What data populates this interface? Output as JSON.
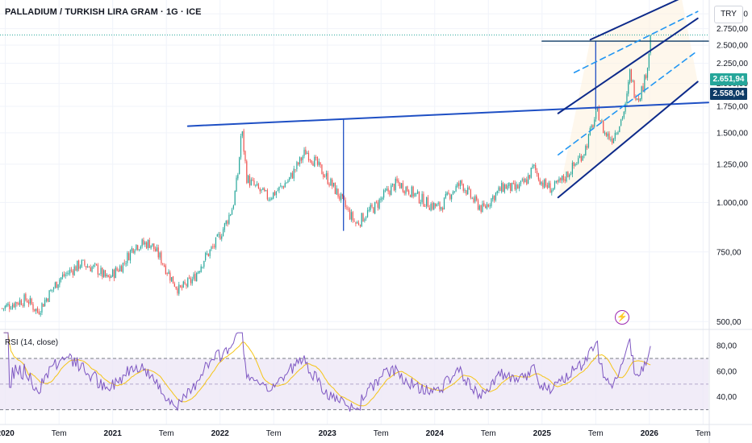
{
  "header": {
    "title": "PALLADIUM / TURKISH LIRA GRAM · 1G · ICE",
    "currency": "TRY"
  },
  "badges": {
    "last_price": "2.651,94",
    "level_price": "2.558,04",
    "last_color": "#26a69a",
    "level_color": "#0d3b66"
  },
  "rsi": {
    "label": "RSI (14, close)",
    "line_color": "#7e57c2",
    "ma_color": "#f5c518",
    "upper": 70,
    "middle": 50,
    "lower": 30
  },
  "icons": {
    "event": "flash-icon"
  },
  "colors": {
    "up": "#26a69a",
    "down": "#ef5350",
    "trendline": "#1e4fc4",
    "channel": "#0d2a8a",
    "channel_mid": "#2196f3",
    "rsi_band": "#ede7f6"
  },
  "chart_data": [
    {
      "type": "candlestick",
      "title": "PALLADIUM / TURKISH LIRA GRAM · 1G · ICE",
      "x_ticks": [
        "2020",
        "Tem",
        "2021",
        "Tem",
        "2022",
        "Tem",
        "2023",
        "Tem",
        "2024",
        "Tem",
        "2025",
        "Tem",
        "2026",
        "Tem"
      ],
      "y_ticks": [
        "500,00",
        "750,00",
        "1.000,00",
        "1.250,00",
        "1.500,00",
        "1.750,00",
        "2.000,00",
        "2.250,00",
        "2.500,00",
        "2.750,00",
        "3.000,00"
      ],
      "ylim": [
        480,
        3250
      ],
      "xlim": [
        2019.95,
        2026.55
      ],
      "last_price": 2651.94,
      "marked_level": 2558.04,
      "price_path": [
        [
          2019.97,
          540
        ],
        [
          2020.1,
          560
        ],
        [
          2020.2,
          570
        ],
        [
          2020.3,
          530
        ],
        [
          2020.5,
          640
        ],
        [
          2020.7,
          700
        ],
        [
          2020.85,
          680
        ],
        [
          2020.95,
          640
        ],
        [
          2021.1,
          700
        ],
        [
          2021.2,
          780
        ],
        [
          2021.35,
          790
        ],
        [
          2021.45,
          720
        ],
        [
          2021.55,
          640
        ],
        [
          2021.62,
          600
        ],
        [
          2021.75,
          640
        ],
        [
          2021.85,
          720
        ],
        [
          2021.95,
          780
        ],
        [
          2022.05,
          880
        ],
        [
          2022.12,
          980
        ],
        [
          2022.17,
          1200
        ],
        [
          2022.2,
          1550
        ],
        [
          2022.25,
          1150
        ],
        [
          2022.35,
          1080
        ],
        [
          2022.45,
          1030
        ],
        [
          2022.55,
          1080
        ],
        [
          2022.65,
          1150
        ],
        [
          2022.75,
          1280
        ],
        [
          2022.8,
          1350
        ],
        [
          2022.9,
          1250
        ],
        [
          2023.0,
          1150
        ],
        [
          2023.1,
          1050
        ],
        [
          2023.2,
          940
        ],
        [
          2023.27,
          880
        ],
        [
          2023.35,
          930
        ],
        [
          2023.45,
          980
        ],
        [
          2023.55,
          1060
        ],
        [
          2023.65,
          1120
        ],
        [
          2023.75,
          1080
        ],
        [
          2023.85,
          1030
        ],
        [
          2023.95,
          990
        ],
        [
          2024.05,
          970
        ],
        [
          2024.15,
          1060
        ],
        [
          2024.25,
          1120
        ],
        [
          2024.35,
          1020
        ],
        [
          2024.45,
          960
        ],
        [
          2024.55,
          1040
        ],
        [
          2024.65,
          1100
        ],
        [
          2024.75,
          1080
        ],
        [
          2024.85,
          1130
        ],
        [
          2024.92,
          1230
        ],
        [
          2025.0,
          1120
        ],
        [
          2025.1,
          1080
        ],
        [
          2025.2,
          1150
        ],
        [
          2025.3,
          1240
        ],
        [
          2025.4,
          1360
        ],
        [
          2025.48,
          1600
        ],
        [
          2025.52,
          1700
        ],
        [
          2025.58,
          1500
        ],
        [
          2025.65,
          1450
        ],
        [
          2025.72,
          1580
        ],
        [
          2025.78,
          1750
        ],
        [
          2025.82,
          2150
        ],
        [
          2025.86,
          1900
        ],
        [
          2025.9,
          1850
        ],
        [
          2025.95,
          2000
        ],
        [
          2025.99,
          2300
        ],
        [
          2026.01,
          2651.94
        ]
      ],
      "annotations": {
        "neckline": [
          [
            2021.7,
            1560
          ],
          [
            2026.55,
            1790
          ]
        ],
        "measure_left": {
          "x": 2023.15,
          "from": 1625,
          "to": 850
        },
        "measure_right": {
          "x": 2025.5,
          "from": 2558,
          "to": 1720
        },
        "target_line": {
          "from": 2025.0,
          "to": 2026.55,
          "y": 2558.04
        },
        "channel_upper": [
          [
            2025.15,
            1680
          ],
          [
            2026.45,
            2920
          ]
        ],
        "channel_lower": [
          [
            2025.15,
            1030
          ],
          [
            2026.45,
            2020
          ]
        ],
        "channel_top": [
          [
            2025.45,
            2580
          ],
          [
            2026.3,
            3290
          ]
        ],
        "channel_mid_dashes": [
          [
            [
              2025.15,
              1320
            ],
            [
              2026.45,
              2420
            ]
          ],
          [
            [
              2025.3,
              2130
            ],
            [
              2026.45,
              3040
            ]
          ]
        ]
      }
    },
    {
      "type": "line",
      "title": "RSI (14, close)",
      "y_ticks": [
        "40,00",
        "60,00",
        "80,00"
      ],
      "ylim": [
        26,
        92
      ],
      "levels": [
        30,
        50,
        70
      ]
    }
  ]
}
